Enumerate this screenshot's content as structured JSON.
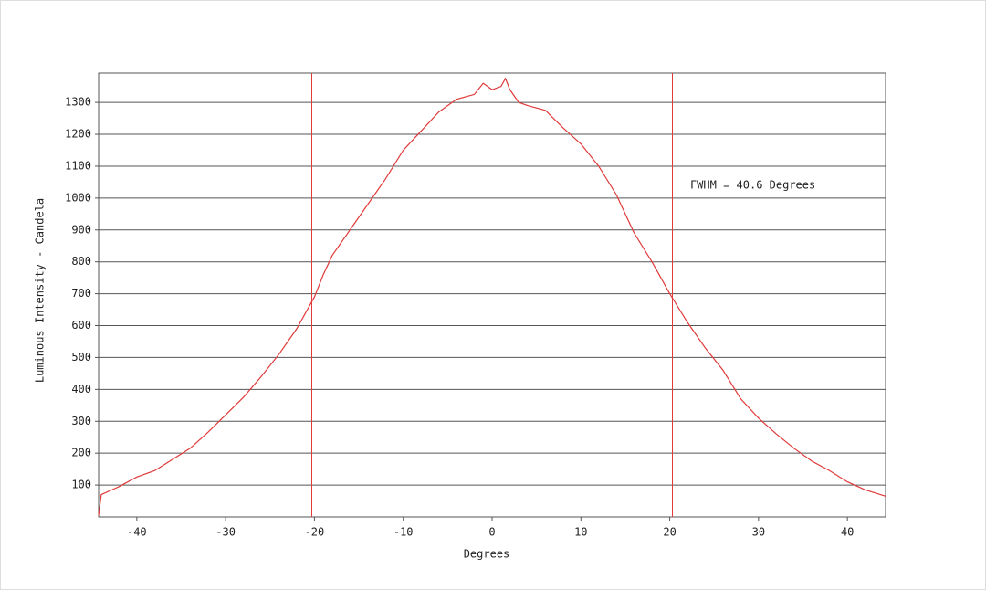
{
  "chart_data": {
    "type": "line",
    "xlabel": "Degrees",
    "ylabel": "Luminous Intensity - Candela",
    "annotation": "FWHM = 40.6 Degrees",
    "color": "#e03a3a",
    "x": [
      -44.3,
      -44,
      -42,
      -40,
      -38,
      -36,
      -34,
      -32,
      -30,
      -28,
      -26,
      -24,
      -22,
      -20,
      -19,
      -18,
      -16,
      -14,
      -12,
      -10,
      -8,
      -6,
      -4,
      -2,
      -1,
      0,
      1,
      1.5,
      2,
      3,
      4,
      6,
      8,
      10,
      12,
      14,
      16,
      18,
      20,
      22,
      24,
      26,
      28,
      30,
      32,
      34,
      36,
      38,
      40,
      42,
      44.3
    ],
    "values": [
      5,
      70,
      95,
      125,
      145,
      180,
      215,
      265,
      320,
      375,
      440,
      510,
      590,
      690,
      760,
      820,
      900,
      980,
      1060,
      1150,
      1210,
      1270,
      1310,
      1325,
      1360,
      1340,
      1350,
      1375,
      1340,
      1300,
      1290,
      1275,
      1220,
      1170,
      1100,
      1010,
      890,
      800,
      700,
      610,
      530,
      460,
      370,
      310,
      260,
      215,
      175,
      145,
      110,
      85,
      65
    ],
    "vlines": [
      -20.3,
      20.3
    ],
    "annotation_x": 22.3,
    "annotation_y": 1040,
    "xlim": [
      -44.3,
      44.3
    ],
    "ylim": [
      0,
      1392
    ],
    "xticks": [
      -40,
      -30,
      -20,
      -10,
      0,
      10,
      20,
      30,
      40
    ],
    "yticks": [
      100,
      200,
      300,
      400,
      500,
      600,
      700,
      800,
      900,
      1000,
      1100,
      1200,
      1300
    ],
    "grid": true
  }
}
